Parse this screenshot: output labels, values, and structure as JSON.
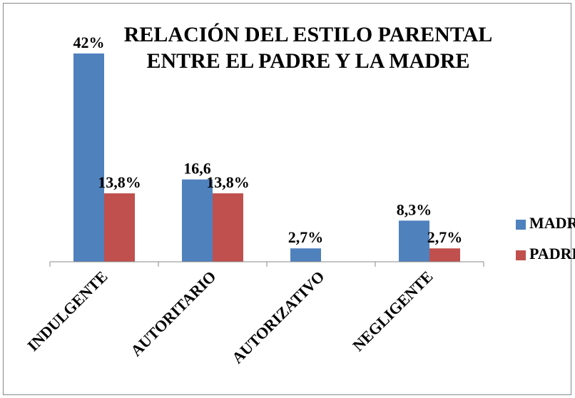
{
  "chart_data": {
    "type": "bar",
    "title": [
      "RELACIÓN DEL ESTILO PARENTAL",
      "ENTRE EL PADRE Y LA MADRE"
    ],
    "categories": [
      "INDULGENTE",
      "AUTORITARIO",
      "AUTORIZATIVO",
      "NEGLIGENTE"
    ],
    "series": [
      {
        "name": "MADRE",
        "color": "#4f81bd",
        "values": [
          42,
          16.6,
          2.7,
          8.3
        ],
        "value_labels": [
          "42%",
          "16,6",
          "2,7%",
          "8,3%"
        ]
      },
      {
        "name": "PADRE",
        "color": "#c0504d",
        "values": [
          13.8,
          13.8,
          null,
          2.7
        ],
        "value_labels": [
          "13,8%",
          "13,8%",
          null,
          "2,7%"
        ]
      }
    ],
    "legend": "right"
  }
}
